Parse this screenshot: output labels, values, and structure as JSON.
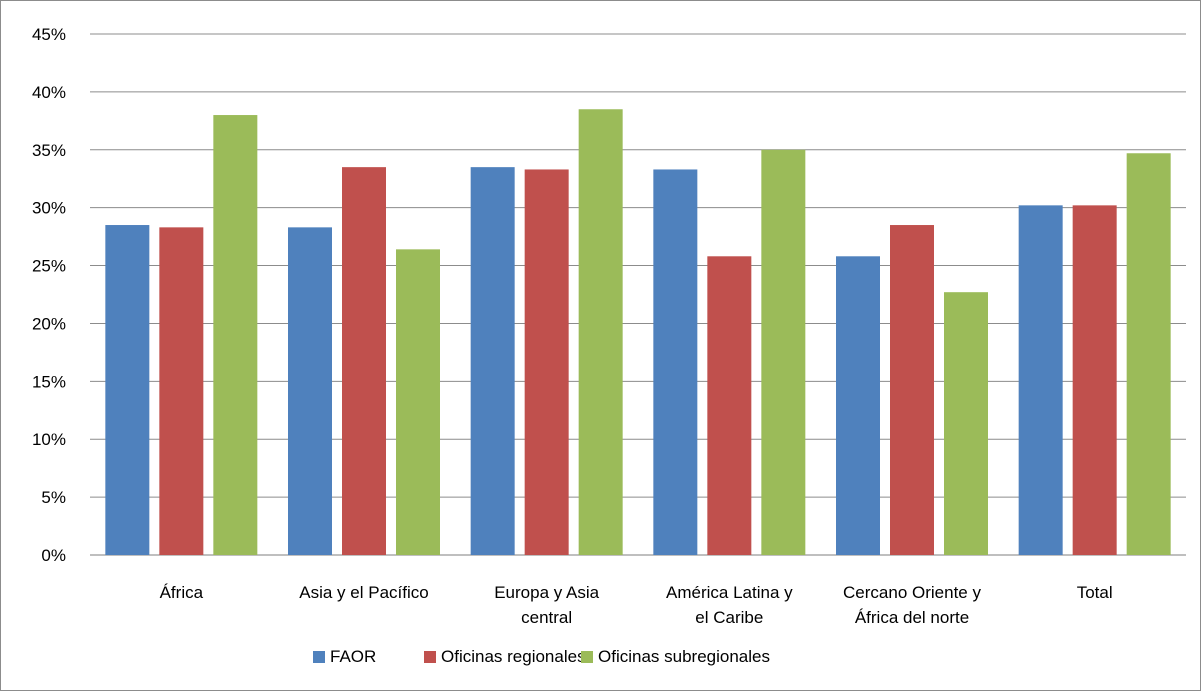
{
  "chart_data": {
    "type": "bar",
    "title": "",
    "xlabel": "",
    "ylabel": "",
    "categories": [
      [
        "África"
      ],
      [
        "Asia y el Pacífico"
      ],
      [
        "Europa y Asia",
        "central"
      ],
      [
        "América Latina y",
        "el Caribe"
      ],
      [
        "Cercano Oriente y",
        "África del norte"
      ],
      [
        "Total"
      ]
    ],
    "series": [
      {
        "name": "FAOR",
        "color": "#4f81bd",
        "values": [
          0.285,
          0.283,
          0.335,
          0.333,
          0.258,
          0.302
        ]
      },
      {
        "name": "Oficinas regionales",
        "color": "#c0504d",
        "values": [
          0.283,
          0.335,
          0.333,
          0.258,
          0.285,
          0.302
        ]
      },
      {
        "name": "Oficinas subregionales",
        "color": "#9bbb59",
        "values": [
          0.38,
          0.264,
          0.385,
          0.35,
          0.227,
          0.347
        ]
      }
    ],
    "ylim": [
      0,
      0.45
    ],
    "y_ticks": [
      0,
      0.05,
      0.1,
      0.15,
      0.2,
      0.25,
      0.3,
      0.35,
      0.4,
      0.45
    ],
    "y_tick_labels": [
      "0%",
      "5%",
      "10%",
      "15%",
      "20%",
      "25%",
      "30%",
      "35%",
      "40%",
      "45%"
    ],
    "grid": true,
    "legend_position": "bottom"
  }
}
